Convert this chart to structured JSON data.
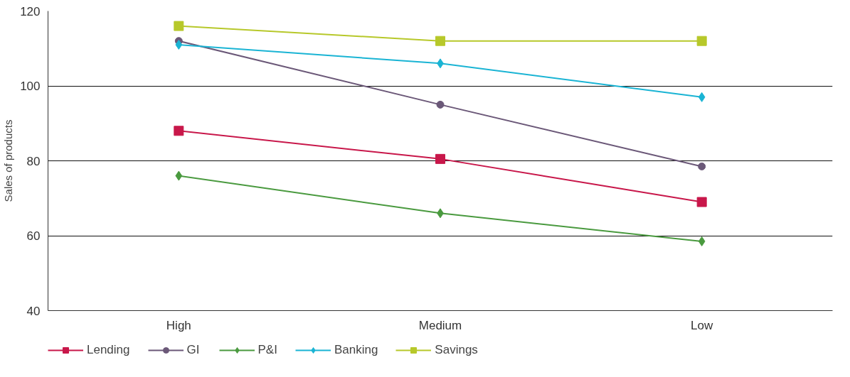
{
  "chart_data": {
    "type": "line",
    "ylabel": "Sales of products",
    "categories": [
      "High",
      "Medium",
      "Low"
    ],
    "series": [
      {
        "name": "Lending",
        "color": "#c8174a",
        "marker": "square",
        "values": [
          88,
          80.5,
          69
        ]
      },
      {
        "name": "GI",
        "color": "#6b5878",
        "marker": "circle",
        "values": [
          112,
          95,
          78.5
        ]
      },
      {
        "name": "P&I",
        "color": "#4a9a3f",
        "marker": "diamond",
        "values": [
          76,
          66,
          58.5
        ]
      },
      {
        "name": "Banking",
        "color": "#1ab4d4",
        "marker": "diamond",
        "values": [
          111,
          106,
          97
        ]
      },
      {
        "name": "Savings",
        "color": "#b7c82a",
        "marker": "square",
        "values": [
          116,
          112,
          112
        ]
      }
    ],
    "ylim": [
      40,
      120
    ],
    "yticks": [
      40,
      60,
      80,
      100,
      120
    ],
    "grid": "y",
    "legend": "bottom",
    "line_style": "solid"
  }
}
